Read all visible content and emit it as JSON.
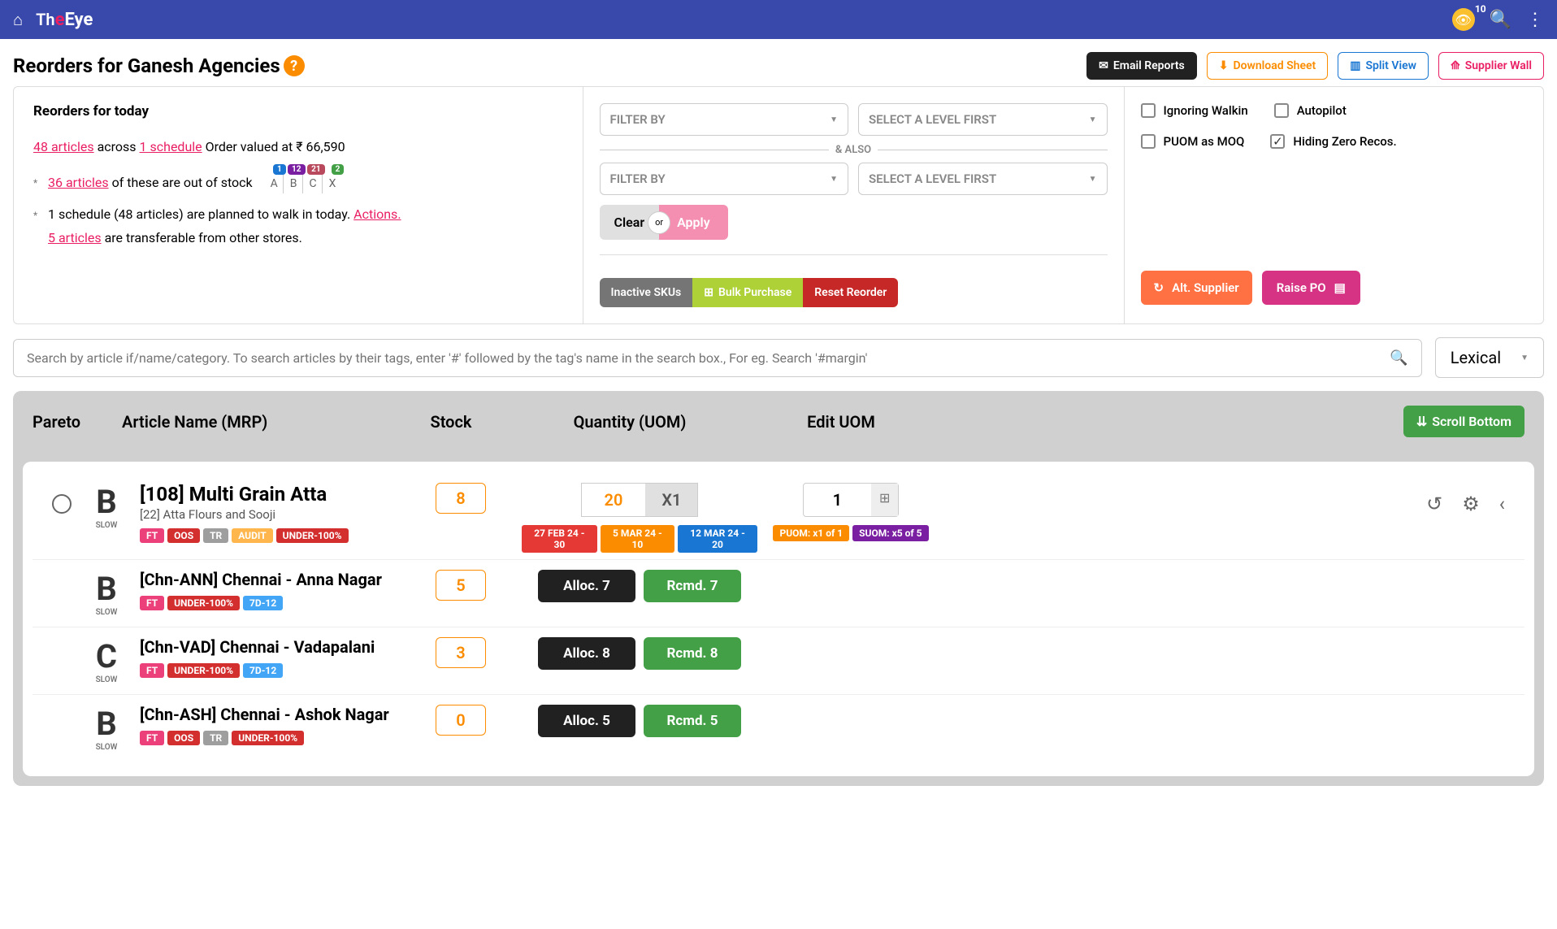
{
  "header": {
    "logo_th": "Th",
    "logo_e": "e",
    "logo_eye": "Eye",
    "badge_count": "10"
  },
  "title": "Reorders for Ganesh Agencies",
  "title_buttons": {
    "email": "Email Reports",
    "download": "Download Sheet",
    "split": "Split View",
    "supplier": "Supplier Wall"
  },
  "summary": {
    "heading": "Reorders for today",
    "articles_link": "48 articles",
    "across": " across ",
    "schedule_link": "1 schedule",
    "order_val": " Order valued at ₹ 66,590",
    "oos_link": "36 articles",
    "oos_text": " of these are out of stock",
    "walkin_text": "1 schedule (48 articles) are planned to walk in today. ",
    "actions_link": "Actions.",
    "transfer_link": "5 articles",
    "transfer_text": " are transferable from other stores.",
    "pareto": {
      "a": "A",
      "a_c": "1",
      "b": "B",
      "b_c": "12",
      "c": "C",
      "c_c": "21",
      "x": "X",
      "x_c": "2"
    }
  },
  "filters": {
    "filter_by": "FILTER BY",
    "select_level": "SELECT A LEVEL FIRST",
    "also": "& ALSO",
    "clear": "Clear",
    "or": "or",
    "apply": "Apply",
    "inactive": "Inactive SKUs",
    "bulk": "Bulk Purchase",
    "reset": "Reset Reorder"
  },
  "options": {
    "ignoring": "Ignoring Walkin",
    "autopilot": "Autopilot",
    "puom": "PUOM as MOQ",
    "hiding": "Hiding Zero Recos.",
    "alt_supplier": "Alt. Supplier",
    "raise_po": "Raise PO"
  },
  "search": {
    "placeholder": "Search by article if/name/category. To search articles by their tags, enter '#' followed by the tag's name in the search box., For eg. Search '#margin'",
    "lexical": "Lexical"
  },
  "columns": {
    "pareto": "Pareto",
    "article": "Article Name (MRP)",
    "stock": "Stock",
    "qty": "Quantity (UOM)",
    "uom": "Edit UOM",
    "scroll": "Scroll Bottom"
  },
  "tags": {
    "ft": "FT",
    "oos": "OOS",
    "tr": "TR",
    "audit": "AUDIT",
    "under": "UNDER-100%",
    "d7": "7D-12"
  },
  "main_article": {
    "pareto": "B",
    "slow": "SLOW",
    "title": "[108] Multi Grain Atta",
    "sub": "[22] Atta Flours and Sooji",
    "stock": "8",
    "qty": "20",
    "mult": "X1",
    "uom_val": "1",
    "d1": "27 FEB 24 - 30",
    "d2": "5 MAR 24 - 10",
    "d3": "12 MAR 24 - 20",
    "puom": "PUOM: x1 of 1",
    "suom": "SUOM: x5 of 5"
  },
  "rows": [
    {
      "pareto": "B",
      "slow": "SLOW",
      "title": "[Chn-ANN] Chennai - Anna Nagar",
      "stock": "5",
      "alloc": "Alloc. 7",
      "rcmd": "Rcmd. 7",
      "tags": [
        "ft",
        "under",
        "d7"
      ]
    },
    {
      "pareto": "C",
      "slow": "SLOW",
      "title": "[Chn-VAD] Chennai - Vadapalani",
      "stock": "3",
      "alloc": "Alloc. 8",
      "rcmd": "Rcmd. 8",
      "tags": [
        "ft",
        "under",
        "d7"
      ]
    },
    {
      "pareto": "B",
      "slow": "SLOW",
      "title": "[Chn-ASH] Chennai - Ashok Nagar",
      "stock": "0",
      "alloc": "Alloc. 5",
      "rcmd": "Rcmd. 5",
      "tags": [
        "ft",
        "oos",
        "tr",
        "under"
      ]
    }
  ]
}
